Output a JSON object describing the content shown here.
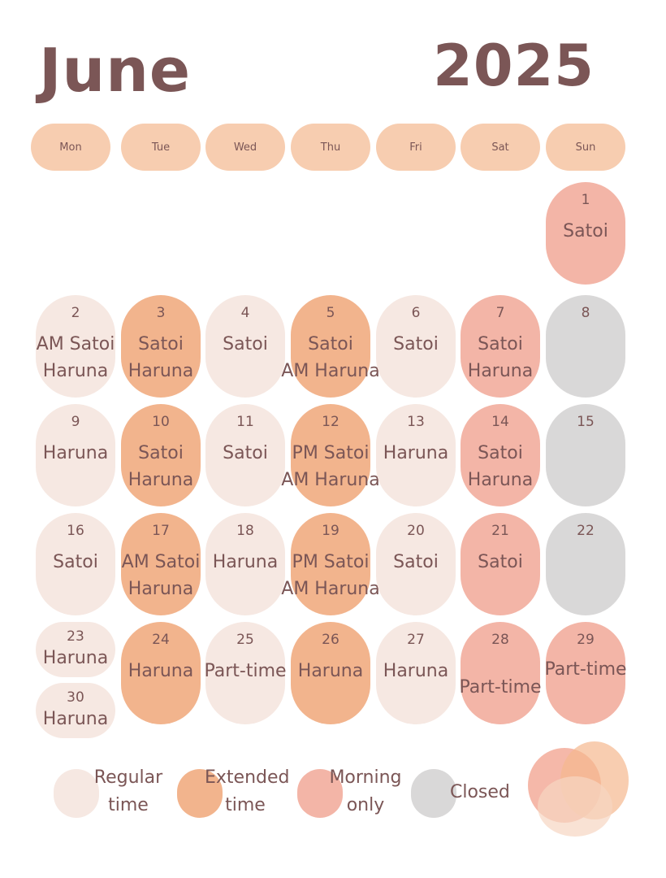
{
  "title": {
    "month": "June",
    "year": "2025"
  },
  "weekdays": [
    "Mon",
    "Tue",
    "Wed",
    "Thu",
    "Fri",
    "Sat",
    "Sun"
  ],
  "days": [
    {
      "day": "1",
      "type": "morning",
      "lines": [
        "Satoi"
      ]
    },
    {
      "day": "2",
      "type": "regular",
      "lines": [
        "AM Satoi",
        "Haruna"
      ]
    },
    {
      "day": "3",
      "type": "extended",
      "lines": [
        "Satoi",
        "Haruna"
      ]
    },
    {
      "day": "4",
      "type": "regular",
      "lines": [
        "Satoi"
      ]
    },
    {
      "day": "5",
      "type": "extended",
      "lines": [
        "Satoi",
        "AM Haruna"
      ]
    },
    {
      "day": "6",
      "type": "regular",
      "lines": [
        "Satoi"
      ]
    },
    {
      "day": "7",
      "type": "morning",
      "lines": [
        "Satoi",
        "Haruna"
      ]
    },
    {
      "day": "8",
      "type": "closed",
      "lines": []
    },
    {
      "day": "9",
      "type": "regular",
      "lines": [
        "Haruna"
      ]
    },
    {
      "day": "10",
      "type": "extended",
      "lines": [
        "Satoi",
        "Haruna"
      ]
    },
    {
      "day": "11",
      "type": "regular",
      "lines": [
        "Satoi"
      ]
    },
    {
      "day": "12",
      "type": "extended",
      "lines": [
        "PM Satoi",
        "AM Haruna"
      ]
    },
    {
      "day": "13",
      "type": "regular",
      "lines": [
        "Haruna"
      ]
    },
    {
      "day": "14",
      "type": "morning",
      "lines": [
        "Satoi",
        "Haruna"
      ]
    },
    {
      "day": "15",
      "type": "closed",
      "lines": []
    },
    {
      "day": "16",
      "type": "regular",
      "lines": [
        "Satoi"
      ]
    },
    {
      "day": "17",
      "type": "extended",
      "lines": [
        "AM Satoi",
        "Haruna"
      ]
    },
    {
      "day": "18",
      "type": "regular",
      "lines": [
        "Haruna"
      ]
    },
    {
      "day": "19",
      "type": "extended",
      "lines": [
        "PM Satoi",
        "AM Haruna"
      ]
    },
    {
      "day": "20",
      "type": "regular",
      "lines": [
        "Satoi"
      ]
    },
    {
      "day": "21",
      "type": "morning",
      "lines": [
        "Satoi"
      ]
    },
    {
      "day": "22",
      "type": "closed",
      "lines": []
    },
    {
      "day": "23",
      "type": "regular",
      "lines": [
        "Haruna"
      ]
    },
    {
      "day": "24",
      "type": "extended",
      "lines": [
        "Haruna"
      ]
    },
    {
      "day": "25",
      "type": "regular",
      "lines": [
        "Part-time"
      ]
    },
    {
      "day": "26",
      "type": "extended",
      "lines": [
        "Haruna"
      ]
    },
    {
      "day": "27",
      "type": "regular",
      "lines": [
        "Haruna"
      ]
    },
    {
      "day": "28",
      "type": "morning",
      "lines": [
        "Part-time"
      ]
    },
    {
      "day": "29",
      "type": "morning",
      "lines": [
        "Part-time"
      ]
    },
    {
      "day": "30",
      "type": "regular",
      "lines": [
        "Haruna"
      ]
    }
  ],
  "legend": [
    {
      "key": "regular",
      "label": "Regular time"
    },
    {
      "key": "extended",
      "label": "Extended time"
    },
    {
      "key": "morning",
      "label": "Morning only"
    },
    {
      "key": "closed",
      "label": "Closed"
    }
  ],
  "colors": {
    "regular": "#f6e8e2",
    "extended": "#f2b48d",
    "morning": "#f3b5a7",
    "closed": "#d9d8d8",
    "weekday_pill": "#f7cdb0",
    "text": "#7b5656"
  }
}
